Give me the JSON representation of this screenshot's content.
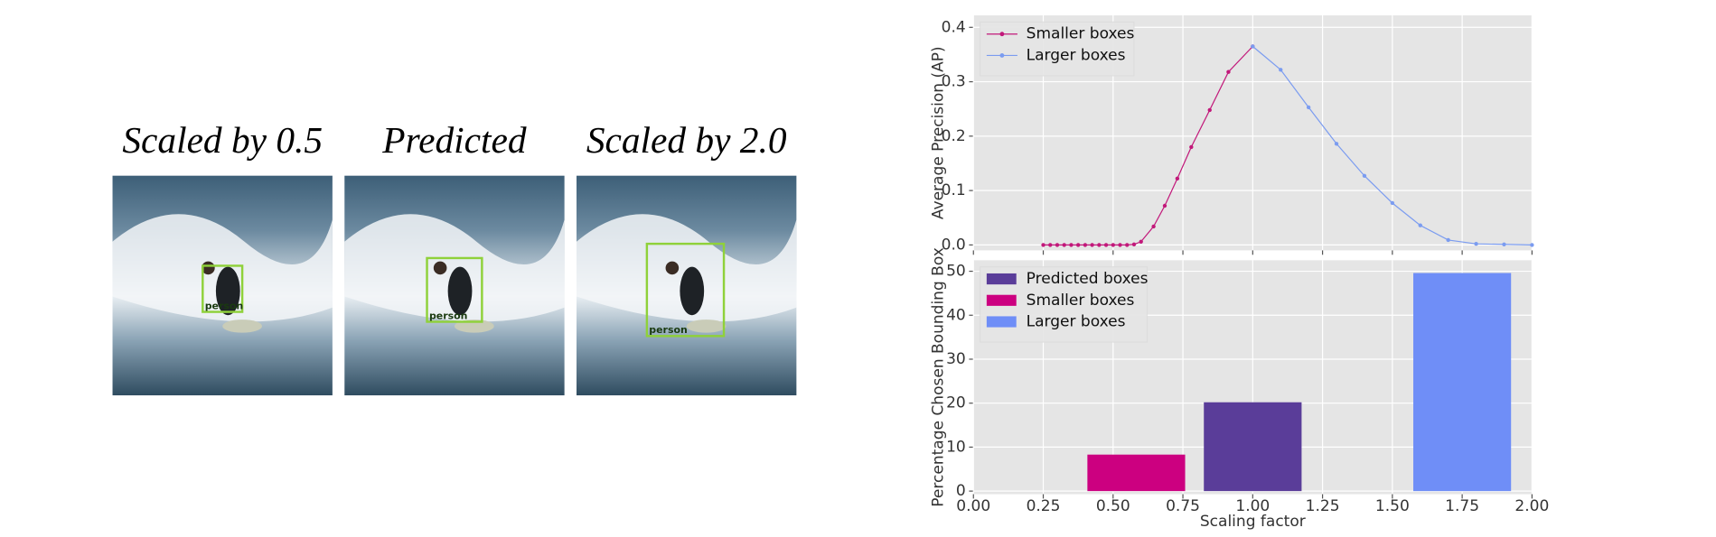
{
  "panels": [
    {
      "title": "Scaled by 0.5",
      "label": "person"
    },
    {
      "title": "Predicted",
      "label": "person"
    },
    {
      "title": "Scaled by 2.0",
      "label": "person"
    }
  ],
  "chart_data": [
    {
      "type": "line",
      "ylabel": "Average Precision (AP)",
      "xlim": [
        0,
        2
      ],
      "ylim": [
        -0.01,
        0.422
      ],
      "xticks": [
        0,
        0.25,
        0.5,
        0.75,
        1,
        1.25,
        1.5,
        1.75,
        2
      ],
      "yticks": [
        {
          "value": 0,
          "label": "0.0"
        },
        0.1,
        0.2,
        0.3,
        0.4
      ],
      "grid": true,
      "legend": "upper left",
      "series": [
        {
          "name": "Smaller boxes",
          "color": "#c2187a",
          "x": [
            0.25,
            0.275,
            0.3,
            0.325,
            0.35,
            0.375,
            0.4,
            0.425,
            0.45,
            0.475,
            0.5,
            0.525,
            0.55,
            0.575,
            0.6,
            0.645,
            0.685,
            0.73,
            0.78,
            0.846,
            0.913,
            1.0
          ],
          "values": [
            0,
            0,
            0,
            0,
            0,
            0,
            0,
            0,
            0,
            0,
            0,
            0,
            0,
            0.001,
            0.006,
            0.034,
            0.072,
            0.122,
            0.18,
            0.248,
            0.318,
            0.365
          ]
        },
        {
          "name": "Larger boxes",
          "color": "#7b9cf0",
          "x": [
            1.0,
            1.1,
            1.2,
            1.3,
            1.4,
            1.5,
            1.6,
            1.7,
            1.8,
            1.9,
            2.0
          ],
          "values": [
            0.365,
            0.322,
            0.253,
            0.186,
            0.127,
            0.077,
            0.036,
            0.009,
            0.002,
            0.001,
            0
          ]
        }
      ]
    },
    {
      "type": "bar",
      "ylabel": "Percentage Chosen Bounding Box",
      "xlabel": "Scaling factor",
      "xlim": [
        0,
        2
      ],
      "ylim": [
        -0.7,
        52.5
      ],
      "xticks": [
        {
          "value": 0,
          "label": "0.00"
        },
        0.25,
        {
          "value": 0.5,
          "label": "0.50"
        },
        0.75,
        {
          "value": 1,
          "label": "1.00"
        },
        1.25,
        {
          "value": 1.5,
          "label": "1.50"
        },
        1.75,
        {
          "value": 2,
          "label": "2.00"
        }
      ],
      "yticks": [
        0,
        10,
        20,
        30,
        40,
        50
      ],
      "grid": true,
      "legend": "upper left",
      "series": [
        {
          "name": "Predicted boxes",
          "color": "#5a3d99",
          "x": [
            1.0
          ],
          "values": [
            20.2
          ]
        },
        {
          "name": "Smaller boxes",
          "color": "#cc0080",
          "x": [
            0.583
          ],
          "values": [
            8.3
          ]
        },
        {
          "name": "Larger boxes",
          "color": "#6f8ef7",
          "x": [
            1.75
          ],
          "values": [
            49.6
          ]
        }
      ]
    }
  ]
}
